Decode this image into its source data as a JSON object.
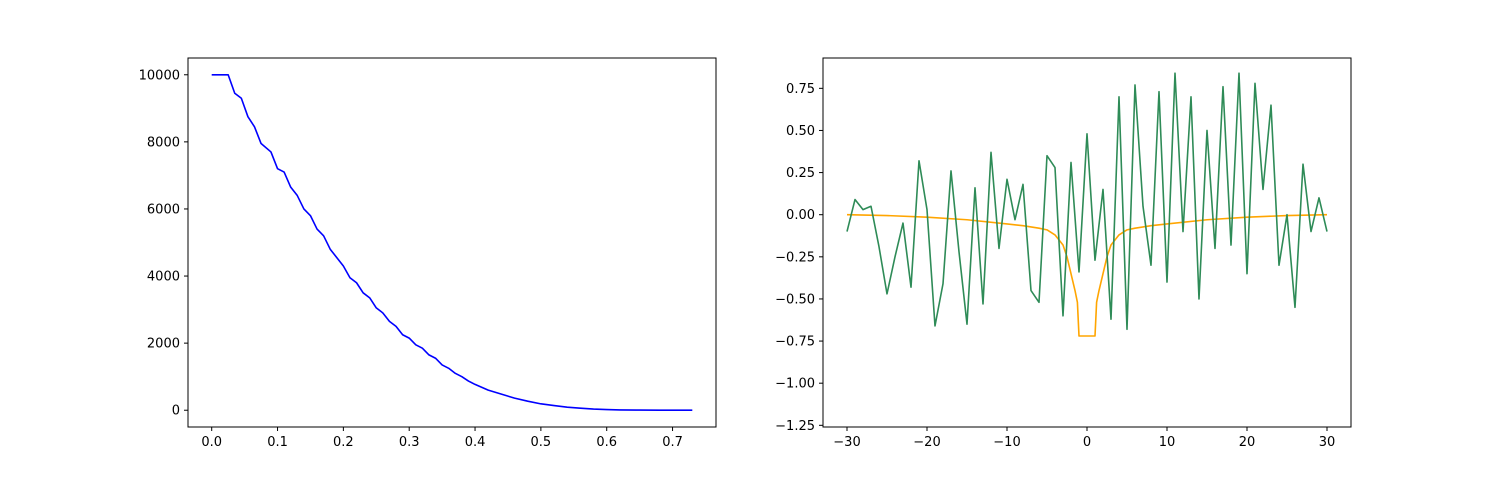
{
  "chart_data": [
    {
      "type": "line",
      "title": "",
      "xlabel": "",
      "ylabel": "",
      "xlim": [
        -0.036,
        0.766
      ],
      "ylim": [
        -500,
        10500
      ],
      "grid": false,
      "x_ticks": [
        "0.0",
        "0.1",
        "0.2",
        "0.3",
        "0.4",
        "0.5",
        "0.6",
        "0.7"
      ],
      "y_ticks": [
        "0",
        "2000",
        "4000",
        "6000",
        "8000",
        "10000"
      ],
      "series": [
        {
          "color": "#0000ff",
          "x": [
            0.0,
            0.02,
            0.025,
            0.035,
            0.045,
            0.055,
            0.065,
            0.075,
            0.09,
            0.1,
            0.11,
            0.12,
            0.13,
            0.14,
            0.15,
            0.16,
            0.17,
            0.18,
            0.19,
            0.2,
            0.21,
            0.22,
            0.23,
            0.24,
            0.25,
            0.26,
            0.27,
            0.28,
            0.29,
            0.3,
            0.31,
            0.32,
            0.33,
            0.34,
            0.35,
            0.36,
            0.37,
            0.38,
            0.39,
            0.4,
            0.42,
            0.44,
            0.46,
            0.48,
            0.5,
            0.52,
            0.54,
            0.56,
            0.58,
            0.6,
            0.62,
            0.65,
            0.68,
            0.73
          ],
          "y": [
            10000,
            10000,
            10000,
            9450,
            9300,
            8750,
            8450,
            7950,
            7700,
            7200,
            7100,
            6650,
            6400,
            6000,
            5800,
            5400,
            5200,
            4800,
            4550,
            4300,
            3950,
            3800,
            3500,
            3350,
            3050,
            2900,
            2650,
            2500,
            2250,
            2150,
            1950,
            1850,
            1650,
            1550,
            1350,
            1250,
            1100,
            1000,
            870,
            770,
            600,
            480,
            360,
            270,
            190,
            140,
            90,
            60,
            35,
            20,
            10,
            4,
            1,
            0
          ]
        }
      ]
    },
    {
      "type": "line",
      "title": "",
      "xlabel": "",
      "ylabel": "",
      "xlim": [
        -33,
        33
      ],
      "ylim": [
        -1.26,
        0.93
      ],
      "grid": false,
      "x_ticks": [
        "−30",
        "−20",
        "−10",
        "0",
        "10",
        "20",
        "30"
      ],
      "y_ticks": [
        "−1.25",
        "−1.00",
        "−0.75",
        "−0.50",
        "−0.25",
        "0.00",
        "0.25",
        "0.50",
        "0.75"
      ],
      "series": [
        {
          "color": "#ffa500",
          "x": [
            -30,
            -25,
            -20,
            -15,
            -10,
            -8,
            -6,
            -5,
            -4,
            -3,
            -2.5,
            -2,
            -1.5,
            -1.2,
            -1,
            1,
            1.2,
            1.5,
            2,
            2.5,
            3,
            4,
            5,
            6,
            8,
            10,
            15,
            20,
            25,
            30
          ],
          "y": [
            0.0,
            -0.005,
            -0.015,
            -0.03,
            -0.055,
            -0.065,
            -0.08,
            -0.09,
            -0.12,
            -0.18,
            -0.25,
            -0.35,
            -0.45,
            -0.52,
            -0.72,
            -0.72,
            -0.52,
            -0.45,
            -0.35,
            -0.25,
            -0.18,
            -0.12,
            -0.09,
            -0.08,
            -0.065,
            -0.055,
            -0.03,
            -0.015,
            -0.005,
            0.0
          ]
        },
        {
          "color": "#2e8b57",
          "x": [
            -30,
            -29,
            -28,
            -27,
            -26,
            -25,
            -24,
            -23,
            -22,
            -21,
            -20,
            -19,
            -18,
            -17,
            -16,
            -15,
            -14,
            -13,
            -12,
            -11,
            -10,
            -9,
            -8,
            -7,
            -6,
            -5,
            -4,
            -3,
            -2,
            -1,
            0,
            1,
            2,
            3,
            4,
            5,
            6,
            7,
            8,
            9,
            10,
            11,
            12,
            13,
            14,
            15,
            16,
            17,
            18,
            19,
            20,
            21,
            22,
            23,
            24,
            25,
            26,
            27,
            28,
            29,
            30
          ],
          "y": [
            -0.1,
            0.09,
            0.03,
            0.05,
            -0.19,
            -0.47,
            -0.25,
            -0.05,
            -0.43,
            0.32,
            0.03,
            -0.66,
            -0.41,
            0.26,
            -0.22,
            -0.65,
            0.16,
            -0.53,
            0.37,
            -0.2,
            0.21,
            -0.03,
            0.18,
            -0.45,
            -0.52,
            0.35,
            0.28,
            -0.6,
            0.31,
            -0.34,
            0.48,
            -0.27,
            0.15,
            -0.62,
            0.7,
            -0.68,
            0.77,
            0.05,
            -0.3,
            0.73,
            -0.4,
            0.84,
            -0.1,
            0.7,
            -0.5,
            0.5,
            -0.2,
            0.76,
            -0.18,
            0.84,
            -0.35,
            0.78,
            0.15,
            0.65,
            -0.3,
            0.0,
            -0.55,
            0.3,
            -0.1,
            0.1,
            -0.1
          ]
        }
      ]
    }
  ]
}
